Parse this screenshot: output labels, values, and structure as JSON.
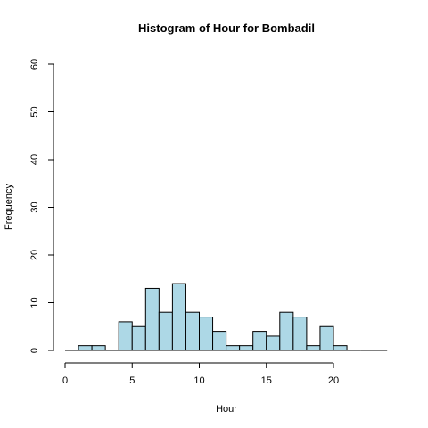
{
  "chart_data": {
    "type": "bar",
    "title": "Histogram of Hour for Bombadil",
    "xlabel": "Hour",
    "ylabel": "Frequency",
    "xlim": [
      0,
      24
    ],
    "ylim": [
      0,
      60
    ],
    "x_ticks": [
      0,
      5,
      10,
      15,
      20
    ],
    "y_ticks": [
      0,
      10,
      20,
      30,
      40,
      50,
      60
    ],
    "bin_width": 1,
    "bins": [
      {
        "start": 0,
        "end": 1,
        "count": 0
      },
      {
        "start": 1,
        "end": 2,
        "count": 1
      },
      {
        "start": 2,
        "end": 3,
        "count": 1
      },
      {
        "start": 3,
        "end": 4,
        "count": 0
      },
      {
        "start": 4,
        "end": 5,
        "count": 6
      },
      {
        "start": 5,
        "end": 6,
        "count": 5
      },
      {
        "start": 6,
        "end": 7,
        "count": 13
      },
      {
        "start": 7,
        "end": 8,
        "count": 8
      },
      {
        "start": 8,
        "end": 9,
        "count": 14
      },
      {
        "start": 9,
        "end": 10,
        "count": 8
      },
      {
        "start": 10,
        "end": 11,
        "count": 7
      },
      {
        "start": 11,
        "end": 12,
        "count": 4
      },
      {
        "start": 12,
        "end": 13,
        "count": 1
      },
      {
        "start": 13,
        "end": 14,
        "count": 1
      },
      {
        "start": 14,
        "end": 15,
        "count": 4
      },
      {
        "start": 15,
        "end": 16,
        "count": 3
      },
      {
        "start": 16,
        "end": 17,
        "count": 8
      },
      {
        "start": 17,
        "end": 18,
        "count": 7
      },
      {
        "start": 18,
        "end": 19,
        "count": 1
      },
      {
        "start": 19,
        "end": 20,
        "count": 5
      },
      {
        "start": 20,
        "end": 21,
        "count": 1
      },
      {
        "start": 21,
        "end": 22,
        "count": 0
      },
      {
        "start": 22,
        "end": 23,
        "count": 0
      },
      {
        "start": 23,
        "end": 24,
        "count": 0
      }
    ],
    "bar_color": "#add8e6",
    "bar_border_color": "#000000",
    "grid": false,
    "legend": "none"
  }
}
